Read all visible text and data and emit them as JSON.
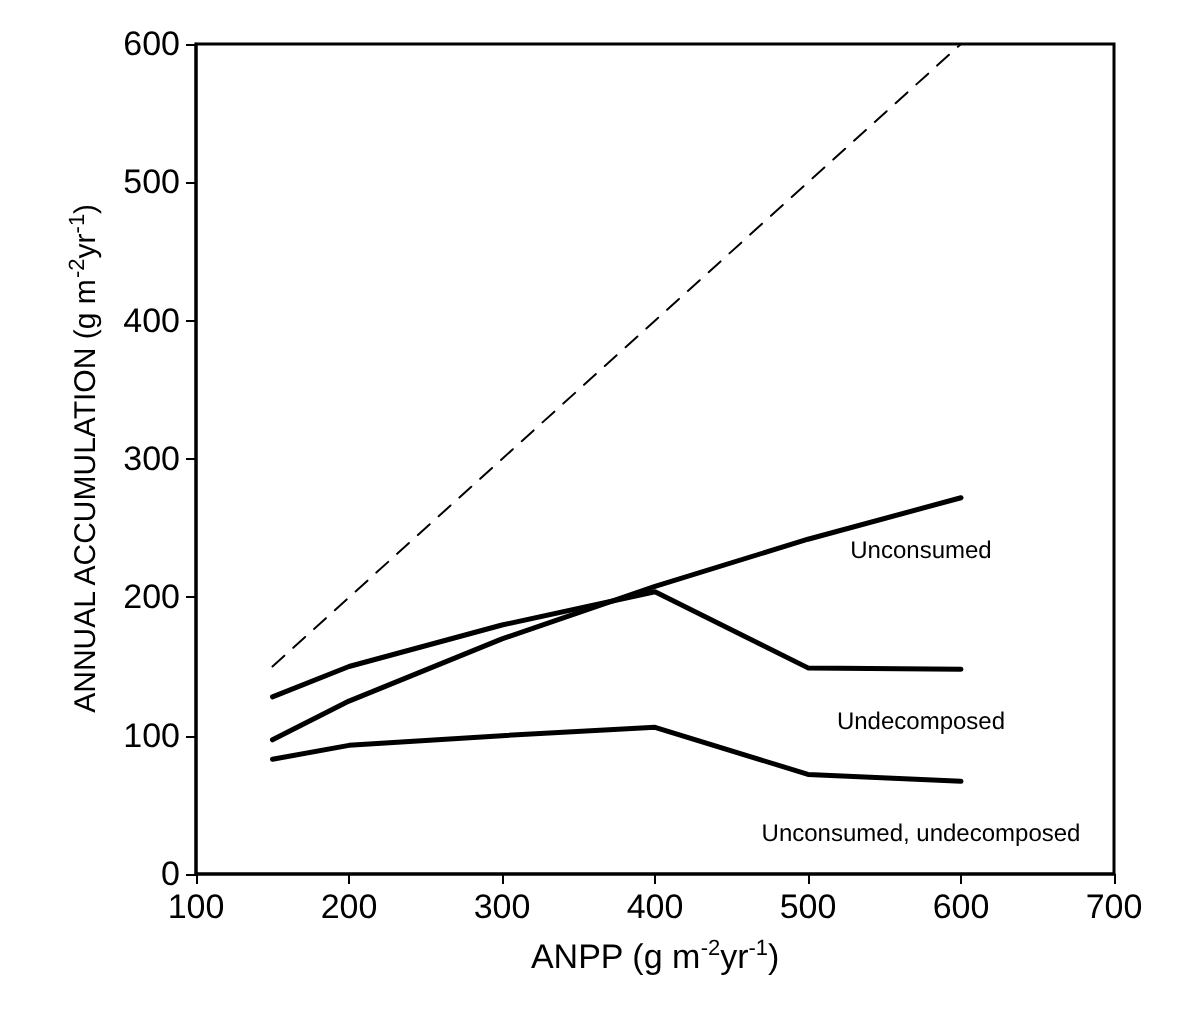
{
  "chart_data": {
    "type": "line",
    "xlabel": "ANPP (g m$^{-2}$yr$^{-1}$)",
    "ylabel": "ANNUAL ACCUMULATION (g m$^{-2}$yr$^{-1}$)",
    "x": [
      150,
      200,
      300,
      400,
      500,
      600
    ],
    "series": [
      {
        "color": "#000000",
        "line_style": "dashed",
        "x": [
          150,
          600
        ],
        "values": [
          150,
          600
        ]
      },
      {
        "name": "Unconsumed",
        "color": "#000000",
        "values": [
          97,
          125,
          170,
          208,
          242,
          272
        ]
      },
      {
        "name": "Undecomposed",
        "color": "#000000",
        "values": [
          128,
          150,
          180,
          204,
          149,
          148
        ]
      },
      {
        "name": "Unconsumed, undecomposed",
        "color": "#000000",
        "values": [
          83,
          93,
          100,
          106,
          72,
          67
        ]
      }
    ],
    "xlim": [
      100,
      700
    ],
    "xticks": [
      100,
      200,
      300,
      400,
      500,
      600,
      700
    ],
    "ylim": [
      0,
      600
    ],
    "yticks": [
      0,
      100,
      200,
      300,
      400,
      500,
      600
    ],
    "grid": false,
    "marker": "none",
    "line_style": "solid"
  }
}
